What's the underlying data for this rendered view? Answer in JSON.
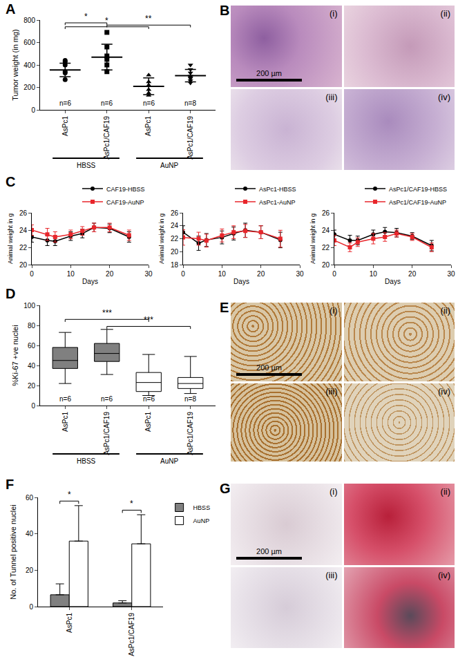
{
  "chart_data": [
    {
      "type": "dot_mean_sd",
      "panel": "A",
      "categories": [
        "AsPc1",
        "AsPc1/CAF19",
        "AsPc1",
        "AsPc1/CAF19"
      ],
      "groups": [
        {
          "label": "HBSS",
          "from": 0,
          "to": 1
        },
        {
          "label": "AuNP",
          "from": 2,
          "to": 3
        }
      ],
      "points": [
        [
          440,
          430,
          400,
          340,
          330,
          270
        ],
        [
          690,
          560,
          480,
          450,
          400,
          340
        ],
        [
          310,
          250,
          220,
          180,
          150,
          130
        ],
        [
          400,
          360,
          330,
          300,
          290,
          280,
          260,
          240
        ]
      ],
      "mean": [
        355,
        470,
        210,
        305
      ],
      "sd": [
        60,
        115,
        75,
        55
      ],
      "markers": [
        "circle",
        "square",
        "triangle-up",
        "triangle-down"
      ],
      "color": "#000000",
      "n_labels": [
        "n=6",
        "n=6",
        "n=6",
        "n=8"
      ],
      "significance": [
        {
          "from": 0,
          "to": 1,
          "y": 775,
          "label": "*"
        },
        {
          "from": 0,
          "to": 2,
          "y": 740,
          "label": "*"
        },
        {
          "from": 1,
          "to": 3,
          "y": 755,
          "label": "**"
        }
      ],
      "y_label": "Tumor weight (in mg)",
      "ylim": [
        0,
        800
      ],
      "yticks": [
        0,
        200,
        400,
        600,
        800
      ]
    },
    {
      "type": "image",
      "panel": "B",
      "labels": [
        "(i)",
        "(ii)",
        "(iii)",
        "(iv)"
      ],
      "scale_bar": "200 µm"
    },
    {
      "type": "line",
      "panel": "C",
      "x": [
        0,
        4,
        6,
        10,
        13,
        16,
        20,
        25
      ],
      "series": [
        {
          "name": "CAF19-HBSS",
          "color": "#000000",
          "marker": "circle",
          "values": [
            23.2,
            22.8,
            22.7,
            23.3,
            23.6,
            24.3,
            24.2,
            23.2
          ],
          "error": [
            0.6,
            0.6,
            0.5,
            0.5,
            0.5,
            0.5,
            0.5,
            0.6
          ]
        },
        {
          "name": "CAF19-AuNP",
          "color": "#e8262b",
          "marker": "square",
          "values": [
            24.0,
            23.5,
            23.2,
            23.5,
            23.9,
            24.3,
            24.3,
            23.4
          ],
          "error": [
            0.6,
            0.7,
            0.6,
            0.5,
            0.5,
            0.5,
            0.5,
            0.6
          ]
        }
      ],
      "x_label": "Days",
      "y_label": "Animal weight in g",
      "legend": "top right",
      "xlim": [
        0,
        30
      ],
      "xticks": [
        0,
        10,
        20,
        30
      ],
      "ylim": [
        20,
        26
      ],
      "yticks": [
        20,
        22,
        24,
        26
      ]
    },
    {
      "type": "line",
      "x": [
        0,
        4,
        6,
        10,
        13,
        16,
        20,
        25
      ],
      "series": [
        {
          "name": "AsPc1-HBSS",
          "color": "#000000",
          "marker": "circle",
          "values": [
            23.0,
            21.3,
            21.8,
            22.2,
            22.8,
            23.3,
            23.0,
            21.8
          ],
          "error": [
            1.0,
            1.1,
            1.0,
            1.0,
            1.0,
            1.1,
            1.0,
            1.2
          ]
        },
        {
          "name": "AsPc1-AuNP",
          "color": "#e8262b",
          "marker": "square",
          "values": [
            22.2,
            22.0,
            21.7,
            22.5,
            23.0,
            23.2,
            23.0,
            22.0
          ],
          "error": [
            1.2,
            1.0,
            1.0,
            1.0,
            1.0,
            1.0,
            1.0,
            1.3
          ]
        }
      ],
      "x_label": "Days",
      "y_label": "Animal weight in g",
      "legend": "top right",
      "xlim": [
        0,
        30
      ],
      "xticks": [
        0,
        10,
        20,
        30
      ],
      "ylim": [
        18,
        26
      ],
      "yticks": [
        18,
        20,
        22,
        24,
        26
      ]
    },
    {
      "type": "line",
      "x": [
        0,
        4,
        6,
        10,
        13,
        16,
        20,
        25
      ],
      "series": [
        {
          "name": "AsPc1/CAF19-HBSS",
          "color": "#000000",
          "marker": "circle",
          "values": [
            23.5,
            22.8,
            22.8,
            23.5,
            23.8,
            23.7,
            23.3,
            22.2
          ],
          "error": [
            0.5,
            0.6,
            0.5,
            0.5,
            0.5,
            0.5,
            0.4,
            0.6
          ]
        },
        {
          "name": "AsPc1/CAF19-AuNP",
          "color": "#e8262b",
          "marker": "square",
          "values": [
            22.8,
            22.0,
            22.6,
            23.0,
            23.2,
            23.6,
            23.2,
            22.0
          ],
          "error": [
            0.6,
            0.5,
            0.5,
            0.6,
            0.5,
            0.4,
            0.4,
            0.5
          ]
        }
      ],
      "x_label": "Days",
      "y_label": "Animal weight in g",
      "legend": "top right",
      "xlim": [
        0,
        30
      ],
      "xticks": [
        0,
        10,
        20,
        30
      ],
      "ylim": [
        20,
        26
      ],
      "yticks": [
        20,
        22,
        24,
        26
      ]
    },
    {
      "type": "box",
      "panel": "D",
      "categories": [
        "AsPc1",
        "AsPc1/CAF19",
        "AsPc1",
        "AsPc1/CAF19"
      ],
      "groups": [
        {
          "label": "HBSS",
          "from": 0,
          "to": 1
        },
        {
          "label": "AuNP",
          "from": 2,
          "to": 3
        }
      ],
      "q1": [
        37,
        44,
        14,
        17
      ],
      "median": [
        45,
        52,
        23,
        22
      ],
      "q3": [
        58,
        62,
        33,
        28
      ],
      "lower": [
        22,
        31,
        10,
        12
      ],
      "upper": [
        73,
        76,
        51,
        49
      ],
      "colors": [
        "#808080",
        "#808080",
        "#ffffff",
        "#ffffff"
      ],
      "n_labels": [
        "n=6",
        "n=6",
        "n=6",
        "n=8"
      ],
      "significance": [
        {
          "from": 0,
          "to": 2,
          "y": 86,
          "label": "***"
        },
        {
          "from": 1,
          "to": 3,
          "y": 79,
          "label": "***"
        }
      ],
      "y_label": "%Ki-67 +ve nuclei",
      "ylim": [
        0,
        100
      ],
      "yticks": [
        0,
        20,
        40,
        60,
        80,
        100
      ]
    },
    {
      "type": "image",
      "panel": "E",
      "labels": [
        "(i)",
        "(ii)",
        "(iii)",
        "(iv)"
      ],
      "scale_bar": "200 µm"
    },
    {
      "type": "bar",
      "panel": "F",
      "categories": [
        "AsPc1",
        "AsPc1/CAF19"
      ],
      "series": [
        {
          "name": "HBSS",
          "color": "#808080",
          "values": [
            6.5,
            2
          ],
          "error": [
            6,
            1.2
          ]
        },
        {
          "name": "AuNP",
          "color": "#ffffff",
          "values": [
            36,
            34.5
          ],
          "error": [
            19.5,
            16
          ]
        }
      ],
      "significance": [
        {
          "category": 0,
          "y": 58,
          "label": "*"
        },
        {
          "category": 1,
          "y": 53,
          "label": "*"
        }
      ],
      "y_label": "No. of Tunnel positive nuclei",
      "legend": "top right",
      "ylim": [
        0,
        60
      ],
      "yticks": [
        0,
        20,
        40,
        60
      ]
    },
    {
      "type": "image",
      "panel": "G",
      "labels": [
        "(i)",
        "(ii)",
        "(iii)",
        "(iv)"
      ],
      "scale_bar": "200 µm"
    }
  ]
}
